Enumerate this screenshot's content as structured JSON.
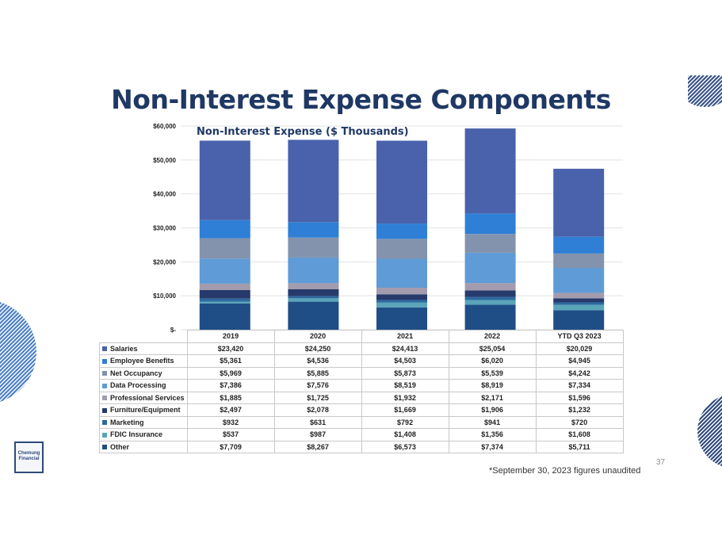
{
  "slide": {
    "title": "Non-Interest Expense Components",
    "page_number": "37",
    "footnote": "*September 30, 2023 figures unaudited",
    "logo_text": "Chemung Financial"
  },
  "colors": {
    "Salaries": "#4a62ab",
    "Employee Benefits": "#2f7fd6",
    "Net Occupancy": "#8393ad",
    "Data Processing": "#5f9bd6",
    "Professional Services": "#a39cae",
    "Furniture/Equipment": "#263a6b",
    "Marketing": "#2c6aa0",
    "FDIC Insurance": "#5aa5b8",
    "Other": "#1f4e86",
    "title": "#1f3864",
    "deco": "#2e4a7a"
  },
  "chart_data": {
    "type": "bar",
    "stacked": true,
    "title": "Non-Interest Expense ($ Thousands)",
    "categories": [
      "2019",
      "2020",
      "2021",
      "2022",
      "YTD Q3 2023"
    ],
    "ylim": [
      0,
      60000
    ],
    "y_ticks": [
      "$-",
      "$10,000",
      "$20,000",
      "$30,000",
      "$40,000",
      "$50,000",
      "$60,000"
    ],
    "grid": true,
    "series": [
      {
        "name": "Other",
        "values": [
          7709,
          8267,
          6573,
          7374,
          5711
        ],
        "labels": [
          "$7,709",
          "$8,267",
          "$6,573",
          "$7,374",
          "$5,711"
        ]
      },
      {
        "name": "FDIC Insurance",
        "values": [
          537,
          987,
          1408,
          1356,
          1608
        ],
        "labels": [
          "$537",
          "$987",
          "$1,408",
          "$1,356",
          "$1,608"
        ]
      },
      {
        "name": "Marketing",
        "values": [
          932,
          631,
          792,
          941,
          720
        ],
        "labels": [
          "$932",
          "$631",
          "$792",
          "$941",
          "$720"
        ]
      },
      {
        "name": "Furniture/Equipment",
        "values": [
          2497,
          2078,
          1669,
          1906,
          1232
        ],
        "labels": [
          "$2,497",
          "$2,078",
          "$1,669",
          "$1,906",
          "$1,232"
        ]
      },
      {
        "name": "Professional Services",
        "values": [
          1885,
          1725,
          1932,
          2171,
          1596
        ],
        "labels": [
          "$1,885",
          "$1,725",
          "$1,932",
          "$2,171",
          "$1,596"
        ]
      },
      {
        "name": "Data Processing",
        "values": [
          7386,
          7576,
          8519,
          8919,
          7334
        ],
        "labels": [
          "$7,386",
          "$7,576",
          "$8,519",
          "$8,919",
          "$7,334"
        ]
      },
      {
        "name": "Net Occupancy",
        "values": [
          5969,
          5885,
          5873,
          5539,
          4242
        ],
        "labels": [
          "$5,969",
          "$5,885",
          "$5,873",
          "$5,539",
          "$4,242"
        ]
      },
      {
        "name": "Employee Benefits",
        "values": [
          5361,
          4536,
          4503,
          6020,
          4945
        ],
        "labels": [
          "$5,361",
          "$4,536",
          "$4,503",
          "$6,020",
          "$4,945"
        ]
      },
      {
        "name": "Salaries",
        "values": [
          23420,
          24250,
          24413,
          25054,
          20029
        ],
        "labels": [
          "$23,420",
          "$24,250",
          "$24,413",
          "$25,054",
          "$20,029"
        ]
      }
    ],
    "table_row_order": [
      "Salaries",
      "Employee Benefits",
      "Net Occupancy",
      "Data Processing",
      "Professional Services",
      "Furniture/Equipment",
      "Marketing",
      "FDIC Insurance",
      "Other"
    ]
  }
}
